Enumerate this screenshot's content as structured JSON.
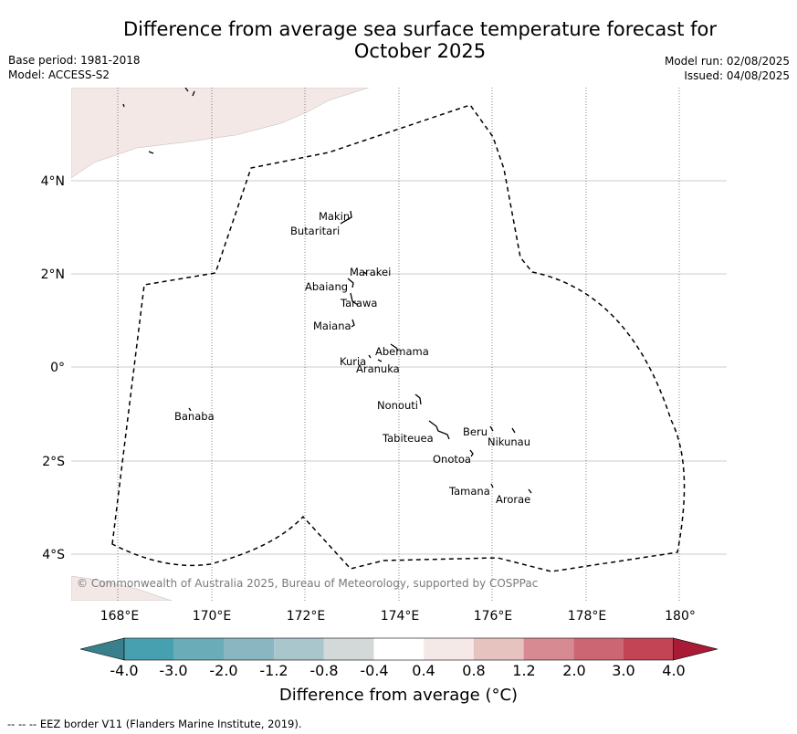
{
  "title_line1": "Difference from average sea surface temperature forecast for",
  "title_line2": "October 2025",
  "meta_left": {
    "base_period": "Base period: 1981-2018",
    "model": "Model: ACCESS-S2"
  },
  "meta_right": {
    "model_run": "Model run: 02/08/2025",
    "issued": "Issued: 04/08/2025"
  },
  "copyright": "© Commonwealth of Australia 2025, Bureau of Meteorology, supported by COSPPac",
  "lat_labels": [
    "4°N",
    "2°N",
    "0°",
    "2°S",
    "4°S"
  ],
  "lon_labels": [
    "168°E",
    "170°E",
    "172°E",
    "174°E",
    "176°E",
    "178°E",
    "180°"
  ],
  "islands": [
    "Makin",
    "Butaritari",
    "Marakei",
    "Abaiang",
    "Tarawa",
    "Maiana",
    "Abemama",
    "Kuria",
    "Aranuka",
    "Nonouti",
    "Banaba",
    "Beru",
    "Nikunau",
    "Tabiteuea",
    "Onotoa",
    "Tamana",
    "Arorae"
  ],
  "colorbar": {
    "title": "Difference from average (°C)",
    "ticks": [
      "-4.0",
      "-3.0",
      "-2.0",
      "-1.2",
      "-0.8",
      "-0.4",
      "0.4",
      "0.8",
      "1.2",
      "2.0",
      "3.0",
      "4.0"
    ],
    "colors": [
      "#3a7f8c",
      "#47a0b0",
      "#6aacb8",
      "#89b6c0",
      "#a8c6cb",
      "#d3d9d9",
      "#ffffff",
      "#f4e9e7",
      "#e7c3bf",
      "#d88a92",
      "#cc6672",
      "#c34555",
      "#a81a35"
    ]
  },
  "legend_note": "--  --  -- EEZ border V11 (Flanders Marine Institute, 2019)."
}
